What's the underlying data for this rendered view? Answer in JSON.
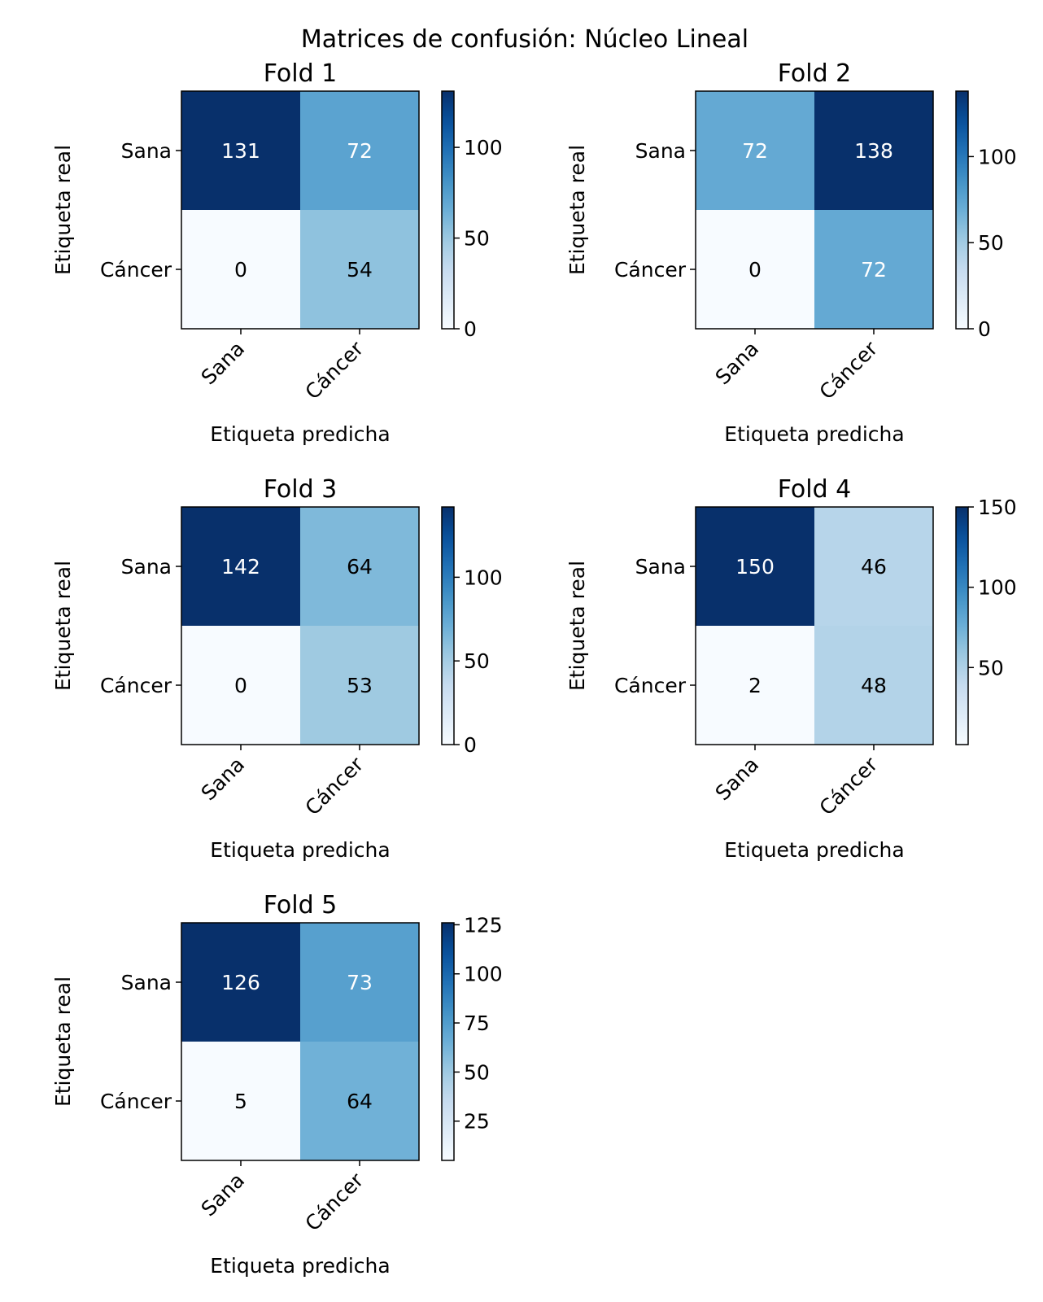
{
  "figure": {
    "title": "Matrices de confusión: Núcleo Lineal"
  },
  "chart_data": [
    {
      "type": "heatmap",
      "title": "Fold 1",
      "xlabel": "Etiqueta predicha",
      "ylabel": "Etiqueta real",
      "x_categories": [
        "Sana",
        "Cáncer"
      ],
      "y_categories": [
        "Sana",
        "Cáncer"
      ],
      "values": [
        [
          131,
          72
        ],
        [
          0,
          54
        ]
      ],
      "colormap": "Blues",
      "colorbar": {
        "min": 0,
        "max": 131,
        "ticks": [
          0,
          50,
          100
        ]
      }
    },
    {
      "type": "heatmap",
      "title": "Fold 2",
      "xlabel": "Etiqueta predicha",
      "ylabel": "Etiqueta real",
      "x_categories": [
        "Sana",
        "Cáncer"
      ],
      "y_categories": [
        "Sana",
        "Cáncer"
      ],
      "values": [
        [
          72,
          138
        ],
        [
          0,
          72
        ]
      ],
      "colormap": "Blues",
      "colorbar": {
        "min": 0,
        "max": 138,
        "ticks": [
          0,
          50,
          100
        ]
      }
    },
    {
      "type": "heatmap",
      "title": "Fold 3",
      "xlabel": "Etiqueta predicha",
      "ylabel": "Etiqueta real",
      "x_categories": [
        "Sana",
        "Cáncer"
      ],
      "y_categories": [
        "Sana",
        "Cáncer"
      ],
      "values": [
        [
          142,
          64
        ],
        [
          0,
          53
        ]
      ],
      "colormap": "Blues",
      "colorbar": {
        "min": 0,
        "max": 142,
        "ticks": [
          0,
          50,
          100
        ]
      }
    },
    {
      "type": "heatmap",
      "title": "Fold 4",
      "xlabel": "Etiqueta predicha",
      "ylabel": "Etiqueta real",
      "x_categories": [
        "Sana",
        "Cáncer"
      ],
      "y_categories": [
        "Sana",
        "Cáncer"
      ],
      "values": [
        [
          150,
          46
        ],
        [
          2,
          48
        ]
      ],
      "colormap": "Blues",
      "colorbar": {
        "min": 2,
        "max": 150,
        "ticks": [
          50,
          100,
          150
        ]
      }
    },
    {
      "type": "heatmap",
      "title": "Fold 5",
      "xlabel": "Etiqueta predicha",
      "ylabel": "Etiqueta real",
      "x_categories": [
        "Sana",
        "Cáncer"
      ],
      "y_categories": [
        "Sana",
        "Cáncer"
      ],
      "values": [
        [
          126,
          73
        ],
        [
          5,
          64
        ]
      ],
      "colormap": "Blues",
      "colorbar": {
        "min": 5,
        "max": 126,
        "ticks": [
          25,
          50,
          75,
          100,
          125
        ]
      }
    }
  ]
}
